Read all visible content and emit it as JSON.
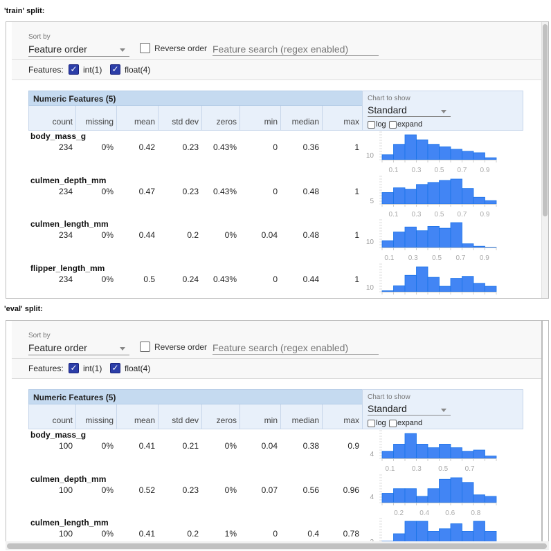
{
  "toolbar": {
    "sort_label": "Sort by",
    "sort_value": "Feature order",
    "reverse_label": "Reverse order",
    "reverse_checked": false,
    "search_placeholder": "Feature search (regex enabled)",
    "features_label": "Features:",
    "feature_filters": [
      {
        "label": "int(1)",
        "checked": true
      },
      {
        "label": "float(4)",
        "checked": true
      }
    ]
  },
  "table": {
    "title": "Numeric Features (5)",
    "columns": [
      "count",
      "missing",
      "mean",
      "std dev",
      "zeros",
      "min",
      "median",
      "max"
    ],
    "chart_label": "Chart to show",
    "chart_value": "Standard",
    "log_label": "log",
    "expand_label": "expand"
  },
  "colors": {
    "bar": "#4285f4",
    "bar_edge": "#1a73e8",
    "header": "#c5daf0",
    "subheader": "#e8f0fa"
  },
  "splits": [
    {
      "title": "'train' split:",
      "rows": [
        {
          "name": "body_mass_g",
          "values": [
            "234",
            "0%",
            "0.42",
            "0.23",
            "0.43%",
            "0",
            "0.36",
            "1"
          ],
          "hist": {
            "domain": [
              0,
              1
            ],
            "counts": [
              10,
              31,
              50,
              40,
              31,
              26,
              21,
              17,
              14,
              4
            ],
            "ytick": 10,
            "xticks": [
              "0.1",
              "0.3",
              "0.5",
              "0.7",
              "0.9"
            ]
          }
        },
        {
          "name": "culmen_depth_mm",
          "values": [
            "234",
            "0%",
            "0.47",
            "0.23",
            "0.43%",
            "0",
            "0.48",
            "1"
          ],
          "hist": {
            "domain": [
              0,
              1
            ],
            "counts": [
              17,
              24,
              22,
              29,
              32,
              35,
              37,
              23,
              10,
              5
            ],
            "ytick": 5,
            "xticks": [
              "0.1",
              "0.3",
              "0.5",
              "0.7",
              "0.9"
            ]
          }
        },
        {
          "name": "culmen_length_mm",
          "values": [
            "234",
            "0%",
            "0.44",
            "0.2",
            "0%",
            "0.04",
            "0.48",
            "1"
          ],
          "hist": {
            "domain": [
              0.04,
              1
            ],
            "counts": [
              11,
              25,
              33,
              27,
              34,
              31,
              40,
              6,
              2,
              0.5
            ],
            "ytick": 10,
            "xticks": [
              "0.1",
              "0.3",
              "0.5",
              "0.7",
              "0.9"
            ]
          }
        },
        {
          "name": "flipper_length_mm",
          "values": [
            "234",
            "0%",
            "0.5",
            "0.24",
            "0.43%",
            "0",
            "0.44",
            "1"
          ],
          "hist": {
            "domain": [
              0,
              1
            ],
            "counts": [
              2,
              12,
              33,
              50,
              29,
              11,
              27,
              31,
              17,
              11
            ],
            "ytick": 10,
            "xticks": []
          }
        }
      ]
    },
    {
      "title": "'eval' split:",
      "rows": [
        {
          "name": "body_mass_g",
          "values": [
            "100",
            "0%",
            "0.41",
            "0.21",
            "0%",
            "0.04",
            "0.38",
            "0.9"
          ],
          "hist": {
            "domain": [
              0.04,
              0.9
            ],
            "counts": [
              6,
              12,
              21,
              12,
              9,
              12,
              9,
              6,
              7,
              2
            ],
            "ytick": 4,
            "xticks": [
              "0.1",
              "0.3",
              "0.5",
              "0.7"
            ]
          }
        },
        {
          "name": "culmen_depth_mm",
          "values": [
            "100",
            "0%",
            "0.52",
            "0.23",
            "0%",
            "0.07",
            "0.56",
            "0.96"
          ],
          "hist": {
            "domain": [
              0.07,
              0.96
            ],
            "counts": [
              6,
              9,
              9,
              4,
              9,
              15,
              16,
              13,
              5,
              4
            ],
            "ytick": 4,
            "xticks": [
              "0.2",
              "0.4",
              "0.6",
              "0.8"
            ]
          }
        },
        {
          "name": "culmen_length_mm",
          "values": [
            "100",
            "0%",
            "0.41",
            "0.2",
            "1%",
            "0",
            "0.4",
            "0.78"
          ],
          "hist": {
            "domain": [
              0,
              0.78
            ],
            "counts": [
              2,
              5,
              10,
              10,
              6,
              7,
              9,
              6,
              10,
              6
            ],
            "ytick": 2,
            "xticks": []
          }
        }
      ]
    }
  ]
}
